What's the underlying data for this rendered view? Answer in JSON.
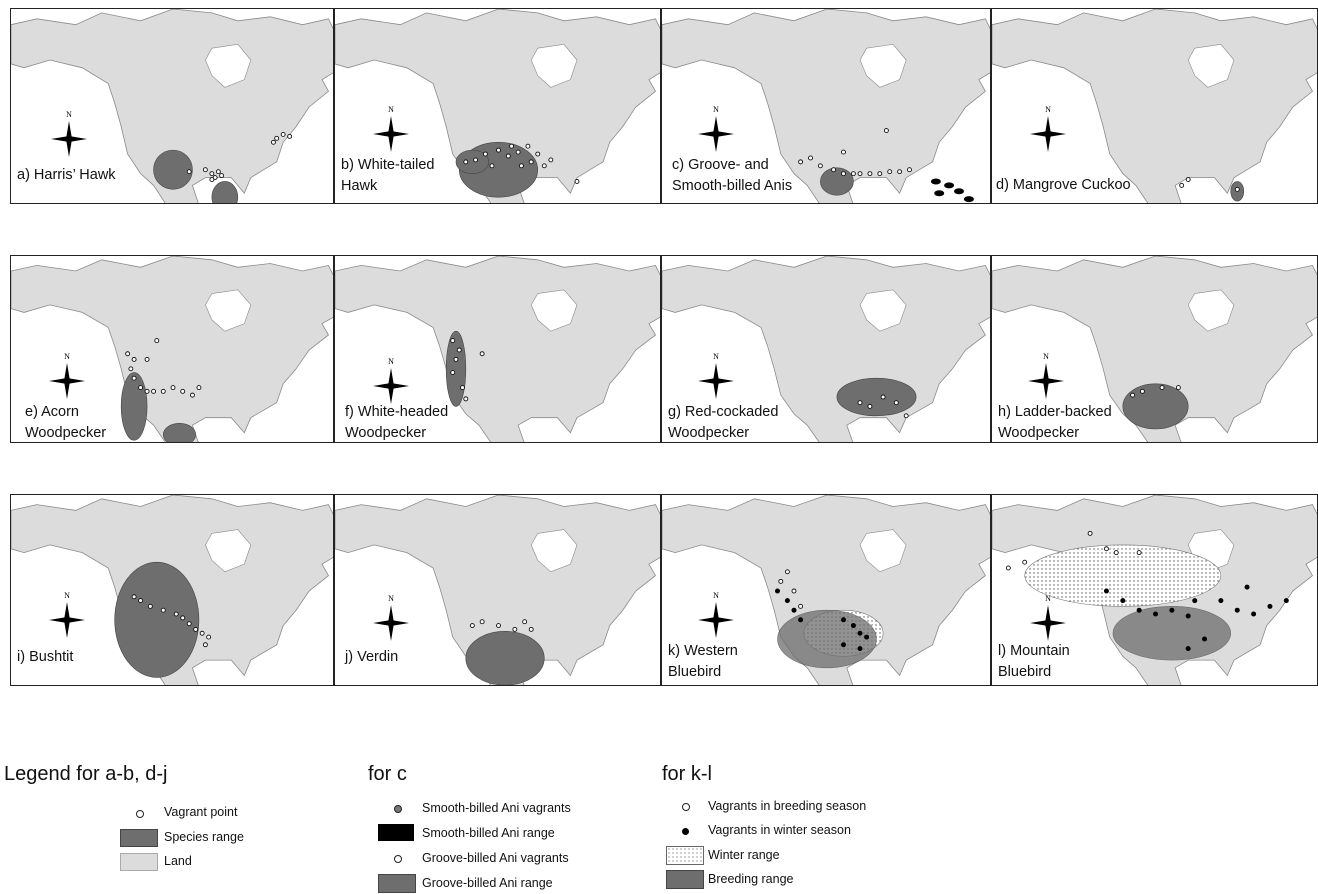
{
  "panels": [
    {
      "id": "a",
      "label": "a) Harris’ Hawk",
      "style": "species",
      "range": [
        [
          0.5,
          0.82,
          0.06,
          0.1
        ],
        [
          0.66,
          0.96,
          0.04,
          0.08
        ]
      ],
      "vagrants": [
        [
          0.55,
          0.83
        ],
        [
          0.6,
          0.82
        ],
        [
          0.62,
          0.84
        ],
        [
          0.64,
          0.83
        ],
        [
          0.63,
          0.86
        ],
        [
          0.65,
          0.85
        ],
        [
          0.82,
          0.66
        ],
        [
          0.84,
          0.64
        ],
        [
          0.86,
          0.65
        ],
        [
          0.81,
          0.68
        ],
        [
          0.62,
          0.87
        ]
      ]
    },
    {
      "id": "b",
      "label": "b) White-tailed\n   Hawk",
      "style": "species",
      "range": [
        [
          0.5,
          0.82,
          0.12,
          0.14
        ],
        [
          0.42,
          0.78,
          0.05,
          0.06
        ]
      ],
      "vagrants": [
        [
          0.4,
          0.78
        ],
        [
          0.43,
          0.77
        ],
        [
          0.46,
          0.74
        ],
        [
          0.5,
          0.72
        ],
        [
          0.53,
          0.75
        ],
        [
          0.56,
          0.73
        ],
        [
          0.59,
          0.7
        ],
        [
          0.62,
          0.74
        ],
        [
          0.6,
          0.78
        ],
        [
          0.57,
          0.8
        ],
        [
          0.64,
          0.8
        ],
        [
          0.66,
          0.77
        ],
        [
          0.54,
          0.7
        ],
        [
          0.48,
          0.8
        ],
        [
          0.74,
          0.88
        ]
      ]
    },
    {
      "id": "c",
      "label": "c) Groove- and\n   Smooth-billed Anis",
      "style": "anis",
      "range": [
        [
          0.53,
          0.88,
          0.05,
          0.07
        ]
      ],
      "black": [
        [
          0.83,
          0.88
        ],
        [
          0.87,
          0.9
        ],
        [
          0.9,
          0.93
        ],
        [
          0.84,
          0.94
        ],
        [
          0.93,
          0.97
        ]
      ],
      "vagrants": [
        [
          0.42,
          0.78
        ],
        [
          0.45,
          0.76
        ],
        [
          0.48,
          0.8
        ],
        [
          0.52,
          0.82
        ],
        [
          0.55,
          0.84
        ],
        [
          0.58,
          0.84
        ],
        [
          0.6,
          0.84
        ],
        [
          0.63,
          0.84
        ],
        [
          0.66,
          0.84
        ],
        [
          0.69,
          0.83
        ],
        [
          0.72,
          0.83
        ],
        [
          0.75,
          0.82
        ],
        [
          0.68,
          0.62
        ],
        [
          0.55,
          0.73
        ]
      ]
    },
    {
      "id": "d",
      "label": "d) Mangrove Cuckoo",
      "style": "species",
      "range": [
        [
          0.75,
          0.93,
          0.02,
          0.05
        ]
      ],
      "black": [],
      "vagrants": [
        [
          0.58,
          0.9
        ],
        [
          0.6,
          0.87
        ],
        [
          0.75,
          0.92
        ]
      ]
    },
    {
      "id": "e",
      "label": "e) Acorn\n   Woodpecker",
      "style": "species",
      "range": [
        [
          0.38,
          0.8,
          0.04,
          0.18
        ],
        [
          0.52,
          0.95,
          0.05,
          0.06
        ]
      ],
      "vagrants": [
        [
          0.36,
          0.52
        ],
        [
          0.38,
          0.55
        ],
        [
          0.37,
          0.6
        ],
        [
          0.38,
          0.65
        ],
        [
          0.4,
          0.7
        ],
        [
          0.42,
          0.72
        ],
        [
          0.44,
          0.72
        ],
        [
          0.47,
          0.72
        ],
        [
          0.5,
          0.7
        ],
        [
          0.53,
          0.72
        ],
        [
          0.56,
          0.74
        ],
        [
          0.58,
          0.7
        ],
        [
          0.45,
          0.45
        ],
        [
          0.42,
          0.55
        ]
      ]
    },
    {
      "id": "f",
      "label": "f) White-headed\n   Woodpecker",
      "style": "species",
      "range": [
        [
          0.37,
          0.6,
          0.03,
          0.2
        ]
      ],
      "vagrants": [
        [
          0.36,
          0.45
        ],
        [
          0.38,
          0.5
        ],
        [
          0.37,
          0.55
        ],
        [
          0.36,
          0.62
        ],
        [
          0.39,
          0.7
        ],
        [
          0.4,
          0.76
        ],
        [
          0.45,
          0.52
        ]
      ]
    },
    {
      "id": "g",
      "label": "g) Red-cockaded\n   Woodpecker",
      "style": "species",
      "range": [
        [
          0.65,
          0.75,
          0.12,
          0.1
        ]
      ],
      "vagrants": [
        [
          0.6,
          0.78
        ],
        [
          0.63,
          0.8
        ],
        [
          0.67,
          0.75
        ],
        [
          0.71,
          0.78
        ],
        [
          0.74,
          0.85
        ]
      ]
    },
    {
      "id": "h",
      "label": "h) Ladder-backed\n   Woodpecker",
      "style": "species",
      "range": [
        [
          0.5,
          0.8,
          0.1,
          0.12
        ]
      ],
      "vagrants": [
        [
          0.43,
          0.74
        ],
        [
          0.46,
          0.72
        ],
        [
          0.52,
          0.7
        ],
        [
          0.57,
          0.7
        ]
      ]
    },
    {
      "id": "i",
      "label": "i) Bushtit",
      "style": "species",
      "range": [
        [
          0.45,
          0.65,
          0.13,
          0.3
        ]
      ],
      "vagrants": [
        [
          0.38,
          0.53
        ],
        [
          0.4,
          0.55
        ],
        [
          0.43,
          0.58
        ],
        [
          0.47,
          0.6
        ],
        [
          0.51,
          0.62
        ],
        [
          0.53,
          0.64
        ],
        [
          0.55,
          0.67
        ],
        [
          0.57,
          0.7
        ],
        [
          0.59,
          0.72
        ],
        [
          0.61,
          0.74
        ],
        [
          0.6,
          0.78
        ]
      ]
    },
    {
      "id": "j",
      "label": "j) Verdin",
      "style": "species",
      "range": [
        [
          0.52,
          0.85,
          0.12,
          0.14
        ]
      ],
      "vagrants": [
        [
          0.42,
          0.68
        ],
        [
          0.45,
          0.66
        ],
        [
          0.5,
          0.68
        ],
        [
          0.55,
          0.7
        ],
        [
          0.58,
          0.66
        ],
        [
          0.6,
          0.7
        ]
      ]
    },
    {
      "id": "k",
      "label": "k) Western\n   Bluebird",
      "style": "bluebird",
      "range": [
        [
          0.5,
          0.75,
          0.15,
          0.15
        ]
      ],
      "winter": [
        [
          0.55,
          0.72,
          0.12,
          0.12
        ]
      ],
      "vagrants_w": [
        [
          0.35,
          0.5
        ],
        [
          0.38,
          0.55
        ],
        [
          0.4,
          0.6
        ],
        [
          0.42,
          0.65
        ],
        [
          0.55,
          0.65
        ],
        [
          0.58,
          0.68
        ],
        [
          0.6,
          0.72
        ],
        [
          0.62,
          0.74
        ],
        [
          0.6,
          0.8
        ],
        [
          0.55,
          0.78
        ]
      ],
      "vagrants": [
        [
          0.36,
          0.45
        ],
        [
          0.38,
          0.4
        ],
        [
          0.4,
          0.5
        ],
        [
          0.42,
          0.58
        ]
      ]
    },
    {
      "id": "l",
      "label": "l) Mountain\n   Bluebird",
      "style": "bluebird",
      "range": [
        [
          0.55,
          0.72,
          0.18,
          0.14
        ]
      ],
      "winter": [
        [
          0.4,
          0.42,
          0.3,
          0.16
        ]
      ],
      "vagrants_w": [
        [
          0.35,
          0.5
        ],
        [
          0.4,
          0.55
        ],
        [
          0.45,
          0.6
        ],
        [
          0.5,
          0.62
        ],
        [
          0.55,
          0.6
        ],
        [
          0.6,
          0.63
        ],
        [
          0.62,
          0.55
        ],
        [
          0.7,
          0.55
        ],
        [
          0.75,
          0.6
        ],
        [
          0.8,
          0.62
        ],
        [
          0.85,
          0.58
        ],
        [
          0.9,
          0.55
        ],
        [
          0.78,
          0.48
        ],
        [
          0.6,
          0.8
        ],
        [
          0.65,
          0.75
        ]
      ],
      "vagrants": [
        [
          0.3,
          0.2
        ],
        [
          0.35,
          0.28
        ],
        [
          0.38,
          0.3
        ],
        [
          0.45,
          0.3
        ],
        [
          0.05,
          0.38
        ],
        [
          0.1,
          0.35
        ]
      ]
    }
  ],
  "legend": {
    "group1": {
      "title": "Legend for a-b, d-j",
      "items": [
        "Vagrant point",
        "Species range",
        "Land"
      ]
    },
    "group2": {
      "title": "for c",
      "items": [
        "Smooth-billed Ani vagrants",
        "Smooth-billed Ani range",
        "Groove-billed Ani vagrants",
        "Groove-billed Ani range"
      ]
    },
    "group3": {
      "title": "for k-l",
      "items": [
        "Vagrants in breeding season",
        "Vagrants in winter season",
        "Winter range",
        "Breeding range"
      ]
    }
  },
  "compass_label": "N",
  "colors": {
    "land": "#dcdcdc",
    "range": "#6e6e6e",
    "black": "#000000",
    "outline": "#8a8a8a"
  }
}
